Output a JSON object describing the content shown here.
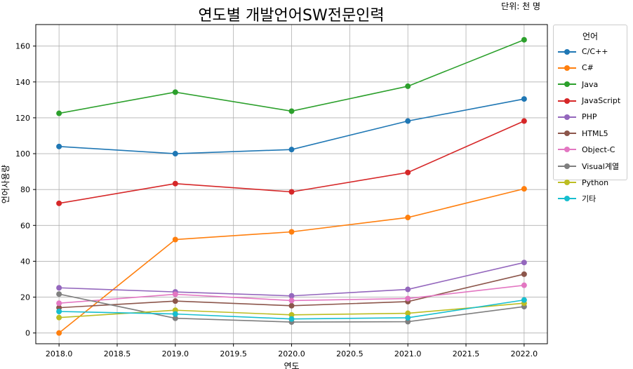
{
  "chart_data": {
    "type": "line",
    "title": "연도별 개발언어SW전문인력",
    "unit_note": "단위: 천 명",
    "xlabel": "연도",
    "ylabel": "언어사용량",
    "x": [
      2018.0,
      2019.0,
      2020.0,
      2021.0,
      2022.0
    ],
    "xlim": [
      2017.8,
      2022.2
    ],
    "ylim": [
      -6,
      172
    ],
    "xticks": [
      "2018.0",
      "2018.5",
      "2019.0",
      "2019.5",
      "2020.0",
      "2020.5",
      "2021.0",
      "2021.5",
      "2022.0"
    ],
    "yticks": [
      "0",
      "20",
      "40",
      "60",
      "80",
      "100",
      "120",
      "140",
      "160"
    ],
    "grid": true,
    "legend_title": "언어",
    "legend_position": "outside-right",
    "series": [
      {
        "name": "C/C++",
        "color": "#1f77b4",
        "values": [
          104,
          100,
          102.3,
          118.2,
          130.5
        ]
      },
      {
        "name": "C#",
        "color": "#ff7f0e",
        "values": [
          0,
          52.1,
          56.4,
          64.4,
          80.4
        ]
      },
      {
        "name": "Java",
        "color": "#2ca02c",
        "values": [
          122.5,
          134.3,
          123.7,
          137.6,
          163.5
        ]
      },
      {
        "name": "JavaScript",
        "color": "#d62728",
        "values": [
          72.3,
          83.3,
          78.7,
          89.5,
          118.2
        ]
      },
      {
        "name": "PHP",
        "color": "#9467bd",
        "values": [
          25.2,
          22.9,
          20.7,
          24.3,
          39.3
        ]
      },
      {
        "name": "HTML5",
        "color": "#8c564b",
        "values": [
          14.1,
          17.8,
          15.2,
          17.5,
          32.8
        ]
      },
      {
        "name": "Object-C",
        "color": "#e377c2",
        "values": [
          16.6,
          21.6,
          18.1,
          19.2,
          26.6
        ]
      },
      {
        "name": "Visual계열",
        "color": "#7f7f7f",
        "values": [
          21.7,
          8.2,
          6.1,
          6.3,
          14.7
        ]
      },
      {
        "name": "Python",
        "color": "#bcbd22",
        "values": [
          8.6,
          12.7,
          10.1,
          11.0,
          16.6
        ]
      },
      {
        "name": "기타",
        "color": "#17becf",
        "values": [
          12.0,
          10.6,
          7.8,
          8.5,
          18.4
        ]
      }
    ]
  }
}
